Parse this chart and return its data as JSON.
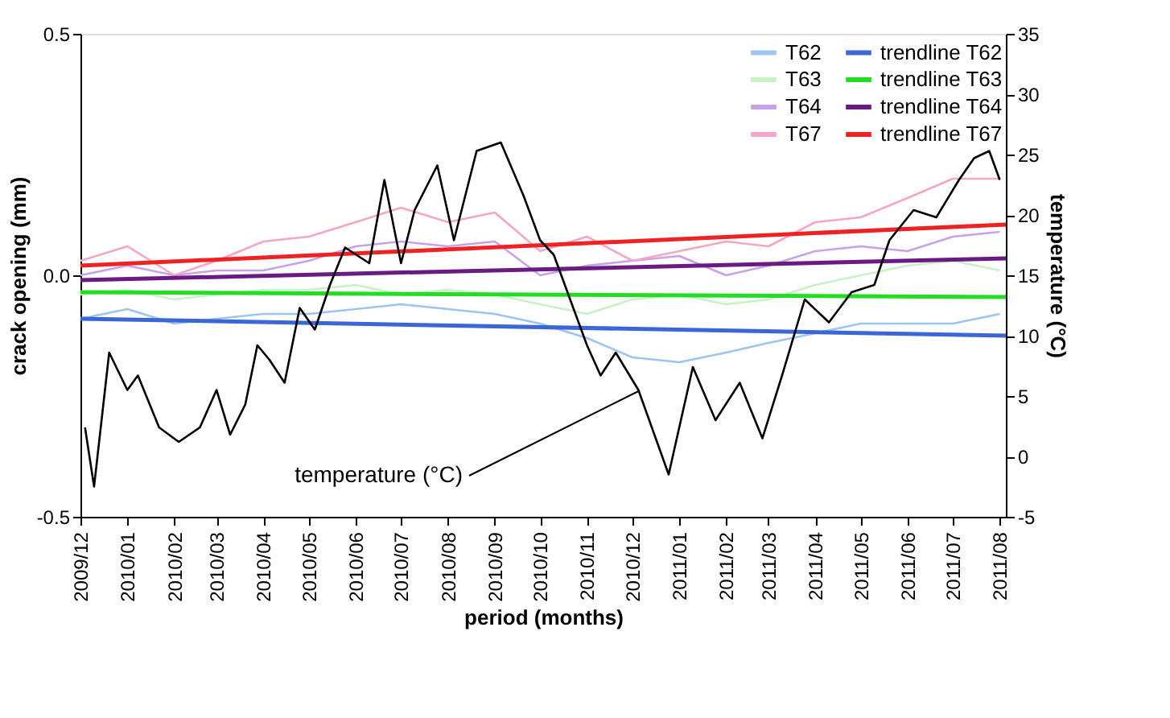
{
  "chart_data": {
    "type": "line",
    "xlabel": "period (months)",
    "ylabel": "crack opening (mm)",
    "y2label": "temperature (°C)",
    "xlim": [
      "2009-12-01",
      "2011-08-05"
    ],
    "xticks": [
      {
        "value": "2009-12-01",
        "label": "2009/12"
      },
      {
        "value": "2010-01-01",
        "label": "2010/01"
      },
      {
        "value": "2010-02-01",
        "label": "2010/02"
      },
      {
        "value": "2010-03-01",
        "label": "2010/03"
      },
      {
        "value": "2010-04-01",
        "label": "2010/04"
      },
      {
        "value": "2010-05-01",
        "label": "2010/05"
      },
      {
        "value": "2010-06-01",
        "label": "2010/06"
      },
      {
        "value": "2010-07-01",
        "label": "2010/07"
      },
      {
        "value": "2010-08-01",
        "label": "2010/08"
      },
      {
        "value": "2010-09-01",
        "label": "2010/09"
      },
      {
        "value": "2010-10-01",
        "label": "2010/10"
      },
      {
        "value": "2010-11-01",
        "label": "2010/11"
      },
      {
        "value": "2010-12-01",
        "label": "2010/12"
      },
      {
        "value": "2011-01-01",
        "label": "2011/01"
      },
      {
        "value": "2011-02-01",
        "label": "2011/02"
      },
      {
        "value": "2011-03-01",
        "label": "2011/03"
      },
      {
        "value": "2011-04-01",
        "label": "2011/04"
      },
      {
        "value": "2011-05-01",
        "label": "2011/05"
      },
      {
        "value": "2011-06-01",
        "label": "2011/06"
      },
      {
        "value": "2011-07-01",
        "label": "2011/07"
      },
      {
        "value": "2011-08-01",
        "label": "2011/08"
      }
    ],
    "ylim": [
      -0.5,
      0.5
    ],
    "yticks": [
      -0.5,
      {
        "value": 0,
        "label": "0.0"
      },
      0.5
    ],
    "y2lim": [
      -5,
      35
    ],
    "y2ticks": [
      -5,
      0,
      5,
      10,
      15,
      20,
      25,
      30,
      35
    ],
    "x": [
      "2009-12-01",
      "2010-01-01",
      "2010-02-01",
      "2010-03-01",
      "2010-04-01",
      "2010-05-01",
      "2010-06-01",
      "2010-07-01",
      "2010-08-01",
      "2010-09-01",
      "2010-10-01",
      "2010-11-01",
      "2010-12-01",
      "2011-01-01",
      "2011-02-01",
      "2011-03-01",
      "2011-04-01",
      "2011-05-01",
      "2011-06-01",
      "2011-07-01",
      "2011-08-01"
    ],
    "series": [
      {
        "name": "T62",
        "color": "#9ec4f0",
        "values": [
          -0.09,
          -0.07,
          -0.1,
          -0.09,
          -0.08,
          -0.08,
          -0.07,
          -0.06,
          -0.07,
          -0.08,
          -0.1,
          -0.13,
          -0.17,
          -0.18,
          -0.16,
          -0.14,
          -0.12,
          -0.1,
          -0.1,
          -0.1,
          -0.08
        ]
      },
      {
        "name": "T63",
        "color": "#c6f2c6",
        "values": [
          -0.04,
          -0.03,
          -0.05,
          -0.04,
          -0.03,
          -0.03,
          -0.02,
          -0.04,
          -0.03,
          -0.04,
          -0.06,
          -0.08,
          -0.05,
          -0.04,
          -0.06,
          -0.05,
          -0.02,
          0.0,
          0.02,
          0.03,
          0.01
        ]
      },
      {
        "name": "T64",
        "color": "#c8a2e8",
        "values": [
          0.0,
          0.02,
          0.0,
          0.01,
          0.01,
          0.03,
          0.06,
          0.07,
          0.06,
          0.07,
          0.0,
          0.02,
          0.03,
          0.04,
          0.0,
          0.02,
          0.05,
          0.06,
          0.05,
          0.08,
          0.09
        ]
      },
      {
        "name": "T67",
        "color": "#f4a6c8",
        "values": [
          0.03,
          0.06,
          0.0,
          0.03,
          0.07,
          0.08,
          0.11,
          0.14,
          0.11,
          0.13,
          0.05,
          0.08,
          0.03,
          0.05,
          0.07,
          0.06,
          0.11,
          0.12,
          0.16,
          0.2,
          0.2
        ]
      },
      {
        "name": "trendline T62",
        "color": "#3a66d6",
        "x": [
          "2009-12-01",
          "2011-08-05"
        ],
        "values": [
          -0.09,
          -0.125
        ]
      },
      {
        "name": "trendline T63",
        "color": "#22dd22",
        "x": [
          "2009-12-01",
          "2011-08-05"
        ],
        "values": [
          -0.035,
          -0.045
        ]
      },
      {
        "name": "trendline T64",
        "color": "#6a1a80",
        "x": [
          "2009-12-01",
          "2011-08-05"
        ],
        "values": [
          -0.01,
          0.035
        ]
      },
      {
        "name": "trendline T67",
        "color": "#ee2222",
        "x": [
          "2009-12-01",
          "2011-08-05"
        ],
        "values": [
          0.02,
          0.105
        ]
      },
      {
        "color": "#000000",
        "axis": "y2",
        "x": [
          "2009-12-04",
          "2009-12-10",
          "2009-12-20",
          "2010-01-01",
          "2010-01-08",
          "2010-01-22",
          "2010-02-04",
          "2010-02-11",
          "2010-02-18",
          "2010-03-01",
          "2010-03-10",
          "2010-03-20",
          "2010-03-28",
          "2010-04-05",
          "2010-04-15",
          "2010-04-25",
          "2010-05-05",
          "2010-05-15",
          "2010-05-25",
          "2010-06-10",
          "2010-06-20",
          "2010-07-01",
          "2010-07-10",
          "2010-07-25",
          "2010-08-05",
          "2010-08-20",
          "2010-09-05",
          "2010-09-20",
          "2010-10-01",
          "2010-10-10",
          "2010-11-01",
          "2010-11-10",
          "2010-11-20",
          "2010-12-05",
          "2010-12-25",
          "2011-01-10",
          "2011-01-25",
          "2011-02-10",
          "2011-02-25",
          "2011-03-10",
          "2011-03-25",
          "2011-04-10",
          "2011-04-25",
          "2011-05-10",
          "2011-05-20",
          "2011-06-05",
          "2011-06-20",
          "2011-07-05",
          "2011-07-15",
          "2011-07-25",
          "2011-08-01"
        ],
        "values": [
          2.4,
          -2.5,
          8.6,
          5.5,
          6.7,
          2.4,
          1.2,
          1.8,
          2.4,
          5.5,
          1.8,
          4.3,
          9.2,
          8.0,
          6.1,
          12.3,
          10.5,
          14.2,
          17.3,
          16.0,
          22.9,
          16.0,
          20.4,
          24.1,
          17.9,
          25.3,
          26.0,
          21.6,
          17.9,
          16.7,
          9.2,
          6.7,
          8.6,
          5.5,
          -1.5,
          7.4,
          3.0,
          6.1,
          1.5,
          6.7,
          13.0,
          11.1,
          13.6,
          14.2,
          17.9,
          20.4,
          19.8,
          22.9,
          24.7,
          25.3,
          22.9
        ]
      }
    ],
    "annotations": [
      {
        "text": "temperature (°C)",
        "x": "2010-12-05",
        "y": -0.24
      }
    ],
    "legend": "top right",
    "grid": false
  }
}
